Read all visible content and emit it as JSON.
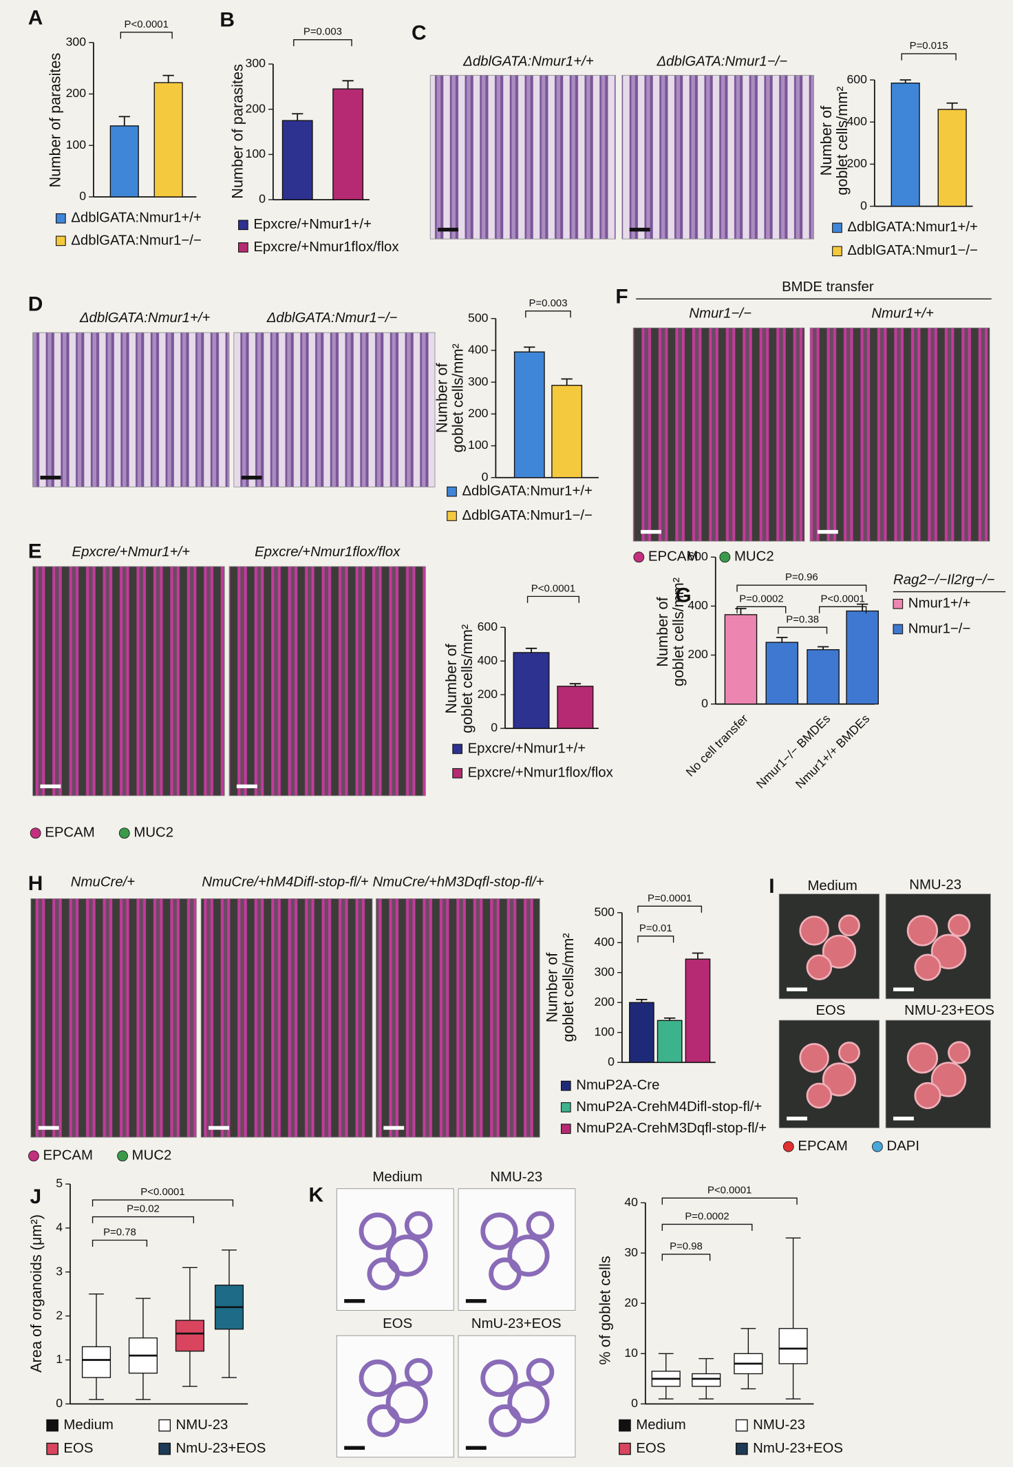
{
  "chart_data": [
    {
      "type": "bar",
      "label": "A",
      "ylabel": [
        "Number of parasites"
      ],
      "ylim": [
        0,
        300
      ],
      "yticks": [
        0,
        100,
        200,
        300
      ],
      "values": [
        138,
        222
      ],
      "errors": [
        18,
        14
      ],
      "colors": [
        "#3f86d8",
        "#f5c93e"
      ],
      "legend": [
        "ΔdblGATA:Nmur1+/+",
        "ΔdblGATA:Nmur1−/−"
      ],
      "pvalues": [
        "P<0.0001"
      ]
    },
    {
      "type": "bar",
      "label": "B",
      "ylabel": [
        "Number of parasites"
      ],
      "ylim": [
        0,
        300
      ],
      "yticks": [
        0,
        100,
        200,
        300
      ],
      "values": [
        175,
        245
      ],
      "errors": [
        15,
        18
      ],
      "colors": [
        "#2d3190",
        "#b52a72"
      ],
      "legend": [
        "Epxcre/+Nmur1+/+",
        "Epxcre/+Nmur1flox/flox"
      ],
      "pvalues": [
        "P=0.003"
      ]
    },
    {
      "type": "bar",
      "ylabel": [
        "Number of",
        "goblet cells/mm²"
      ],
      "ylim": [
        0,
        600
      ],
      "yticks": [
        0,
        200,
        400,
        600
      ],
      "values": [
        585,
        460
      ],
      "errors": [
        15,
        30
      ],
      "colors": [
        "#3f86d8",
        "#f5c93e"
      ],
      "legend": [
        "ΔdblGATA:Nmur1+/+",
        "ΔdblGATA:Nmur1−/−"
      ],
      "pvalues": [
        "P=0.015"
      ]
    },
    {
      "type": "bar",
      "ylabel": [
        "Number of",
        "goblet cells/mm²"
      ],
      "ylim": [
        0,
        500
      ],
      "yticks": [
        0,
        100,
        200,
        300,
        400,
        500
      ],
      "values": [
        395,
        290
      ],
      "errors": [
        15,
        20
      ],
      "colors": [
        "#3f86d8",
        "#f5c93e"
      ],
      "legend": [
        "ΔdblGATA:Nmur1+/+",
        "ΔdblGATA:Nmur1−/−"
      ],
      "pvalues": [
        "P=0.003"
      ]
    },
    {
      "type": "bar",
      "ylabel": [
        "Number of",
        "goblet cells/mm²"
      ],
      "ylim": [
        0,
        600
      ],
      "yticks": [
        0,
        200,
        400,
        600
      ],
      "values": [
        450,
        250
      ],
      "errors": [
        25,
        15
      ],
      "colors": [
        "#2d3190",
        "#b52a72"
      ],
      "legend": [
        "Epxcre/+Nmur1+/+",
        "Epxcre/+Nmur1flox/flox"
      ],
      "pvalues": [
        "P<0.0001"
      ]
    },
    {
      "type": "bar",
      "label": "G",
      "ylabel": [
        "Number of",
        "goblet cells/mm²"
      ],
      "ylim": [
        0,
        600
      ],
      "yticks": [
        0,
        200,
        400,
        600
      ],
      "values": [
        365,
        252,
        222,
        380
      ],
      "errors": [
        25,
        20,
        12,
        28
      ],
      "colors": [
        "#ec86b0",
        "#3f78d0",
        "#3f78d0",
        "#3f78d0"
      ],
      "categories": [
        "No cell transfer",
        null,
        "Nmur1−/− BMDEs",
        "Nmur1+/+ BMDEs"
      ],
      "legend_title": "Rag2−/−Il2rg−/−",
      "legend": [
        "Nmur1+/+",
        "Nmur1−/−"
      ],
      "pvalues": [
        "P=0.0002",
        "P=0.96",
        "P=0.38",
        "P<0.0001"
      ]
    },
    {
      "type": "bar",
      "ylabel": [
        "Number of",
        "goblet cells/mm²"
      ],
      "ylim": [
        0,
        500
      ],
      "yticks": [
        0,
        100,
        200,
        300,
        400,
        500
      ],
      "values": [
        200,
        140,
        345
      ],
      "errors": [
        10,
        8,
        20
      ],
      "colors": [
        "#1e2a78",
        "#3db38c",
        "#b52a72"
      ],
      "legend": [
        "NmuP2A-Cre",
        "NmuP2A-CrehM4Difl-stop-fl/+",
        "NmuP2A-CrehM3Dqfl-stop-fl/+"
      ],
      "pvalues": [
        "P=0.01",
        "P=0.0001"
      ]
    },
    {
      "type": "box",
      "label": "J",
      "ylabel": [
        "Area of organoids (μm²)"
      ],
      "ylim": [
        0,
        5
      ],
      "yticks": [
        0,
        1,
        2,
        3,
        4,
        5
      ],
      "categories": [
        "Medium",
        "NMU-23",
        "EOS",
        "NmU-23+EOS"
      ],
      "min": [
        0.1,
        0.1,
        0.4,
        0.6
      ],
      "q1": [
        0.6,
        0.7,
        1.2,
        1.7
      ],
      "median": [
        1.0,
        1.1,
        1.6,
        2.2
      ],
      "q3": [
        1.3,
        1.5,
        1.9,
        2.7
      ],
      "max": [
        2.5,
        2.4,
        3.1,
        3.5
      ],
      "colors": [
        "#ffffff",
        "#ffffff",
        "#d9455f",
        "#1d6b86"
      ],
      "legend_colors": [
        "#111111",
        "#ffffff",
        "#d9455f",
        "#1d3a56"
      ],
      "pvalues": [
        "P=0.78",
        "P=0.02",
        "P<0.0001"
      ]
    },
    {
      "type": "box",
      "ylabel": [
        "% of goblet cells"
      ],
      "ylim": [
        0,
        40
      ],
      "yticks": [
        0,
        10,
        20,
        30,
        40
      ],
      "categories": [
        "Medium",
        "NMU-23",
        "EOS",
        "NmU-23+EOS"
      ],
      "min": [
        1,
        1,
        3,
        1
      ],
      "q1": [
        3.5,
        3.5,
        6,
        8
      ],
      "median": [
        5,
        5,
        8,
        11
      ],
      "q3": [
        6.5,
        6,
        10,
        15
      ],
      "max": [
        10,
        9,
        15,
        33
      ],
      "colors": [
        "#ffffff",
        "#ffffff",
        "#ffffff",
        "#ffffff"
      ],
      "legend_colors": [
        "#111111",
        "#ffffff",
        "#d9455f",
        "#1d3a56"
      ],
      "pvalues": [
        "P=0.98",
        "P=0.0002",
        "P<0.0001"
      ]
    }
  ],
  "images": [
    {
      "label": "C",
      "kind": "histo",
      "titles": [
        "ΔdblGATA:Nmur1+/+",
        "ΔdblGATA:Nmur1−/−"
      ]
    },
    {
      "label": "D",
      "kind": "histo",
      "titles": [
        "ΔdblGATA:Nmur1+/+",
        "ΔdblGATA:Nmur1−/−"
      ]
    },
    {
      "label": "E",
      "kind": "fluor",
      "titles": [
        "Epxcre/+Nmur1+/+",
        "Epxcre/+Nmur1flox/flox"
      ],
      "legend": [
        "EPCAM",
        "MUC2"
      ],
      "legend_colors": [
        "#c2307e",
        "#3a9a4a"
      ]
    },
    {
      "label": "F",
      "kind": "fluor",
      "heading": "BMDE transfer",
      "titles": [
        "Nmur1−/−",
        "Nmur1+/+"
      ],
      "legend": [
        "EPCAM",
        "MUC2"
      ],
      "legend_colors": [
        "#c2307e",
        "#3a9a4a"
      ]
    },
    {
      "label": "H",
      "kind": "fluor",
      "titles": [
        "NmuCre/+",
        "NmuCre/+hM4Difl-stop-fl/+",
        "NmuCre/+hM3Dqfl-stop-fl/+"
      ],
      "legend": [
        "EPCAM",
        "MUC2"
      ],
      "legend_colors": [
        "#c2307e",
        "#3a9a4a"
      ]
    },
    {
      "label": "I",
      "kind": "organoid",
      "titles": [
        "Medium",
        "NMU-23",
        "EOS",
        "NMU-23+EOS"
      ],
      "legend": [
        "EPCAM",
        "DAPI"
      ],
      "legend_colors": [
        "#e03030",
        "#4aa6d8"
      ]
    },
    {
      "label": "K",
      "kind": "stain",
      "titles": [
        "Medium",
        "NMU-23",
        "EOS",
        "NmU-23+EOS"
      ]
    }
  ]
}
